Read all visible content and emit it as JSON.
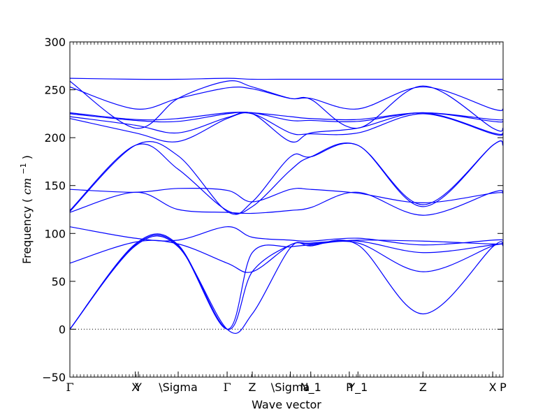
{
  "chart_data": {
    "type": "line",
    "xlabel": "Wave vector",
    "ylabel": "Frequency",
    "ylabel_unit": "cm",
    "ylabel_exponent": "−1",
    "ylim": [
      -50,
      300
    ],
    "yticks": [
      -50,
      0,
      50,
      100,
      150,
      200,
      250,
      300
    ],
    "xlim": [
      0,
      1
    ],
    "x_ticks": [
      {
        "label": "Γ",
        "x": 0.0
      },
      {
        "label": "X",
        "x": 0.151
      },
      {
        "label": "Y",
        "x": 0.158
      },
      {
        "label": "\\Sigma",
        "x": 0.25
      },
      {
        "label": "Γ",
        "x": 0.363
      },
      {
        "label": "Z",
        "x": 0.421
      },
      {
        "label": "\\Sigma",
        "x": 0.509
      },
      {
        "label": "N_1",
        "x": 0.556
      },
      {
        "label": "P",
        "x": 0.645
      },
      {
        "label": "Y_1",
        "x": 0.665
      },
      {
        "label": "Z",
        "x": 0.815
      },
      {
        "label": "X",
        "x": 0.976
      },
      {
        "label": "P",
        "x": 1.0
      }
    ],
    "zero_line": true,
    "line_color": "#0000ff",
    "series": [
      {
        "x": [
          0,
          0.151,
          0.25,
          0.363,
          0.421,
          0.509,
          0.556,
          0.665,
          0.815,
          0.976,
          1
        ],
        "y": [
          0,
          87,
          86,
          0,
          16,
          85,
          87,
          88,
          16,
          86,
          87
        ]
      },
      {
        "x": [
          0,
          0.151,
          0.25,
          0.363,
          0.421,
          0.509,
          0.556,
          0.665,
          0.815,
          0.976,
          1
        ],
        "y": [
          0,
          88,
          87,
          0,
          80,
          86,
          88,
          90,
          60,
          87,
          88
        ]
      },
      {
        "x": [
          0,
          0.151,
          0.25,
          0.363,
          0.421,
          0.509,
          0.556,
          0.665,
          0.815,
          0.976,
          1
        ],
        "y": [
          0,
          89,
          88,
          0,
          60,
          88,
          89,
          92,
          80,
          88,
          89
        ]
      },
      {
        "x": [
          0,
          0.151,
          0.25,
          0.363,
          0.421,
          0.509,
          0.556,
          0.665,
          0.815,
          0.976,
          1
        ],
        "y": [
          69,
          91,
          89,
          69,
          60,
          88,
          90,
          93,
          92,
          89,
          90
        ]
      },
      {
        "x": [
          0,
          0.151,
          0.25,
          0.363,
          0.421,
          0.509,
          0.556,
          0.665,
          0.815,
          0.976,
          1
        ],
        "y": [
          107,
          95,
          93,
          107,
          96,
          93,
          92,
          95,
          88,
          93,
          93
        ]
      },
      {
        "x": [
          0,
          0.151,
          0.25,
          0.363,
          0.421,
          0.509,
          0.556,
          0.665,
          0.815,
          0.976,
          1
        ],
        "y": [
          122,
          143,
          125,
          122,
          121,
          124,
          127,
          143,
          119,
          143,
          143
        ]
      },
      {
        "x": [
          0,
          0.151,
          0.25,
          0.363,
          0.421,
          0.509,
          0.556,
          0.665,
          0.815,
          0.976,
          1
        ],
        "y": [
          124,
          192,
          167,
          124,
          128,
          166,
          180,
          192,
          128,
          192,
          192
        ]
      },
      {
        "x": [
          0,
          0.151,
          0.25,
          0.363,
          0.421,
          0.509,
          0.556,
          0.665,
          0.815,
          0.976,
          1
        ],
        "y": [
          146,
          143,
          147,
          145,
          133,
          146,
          146,
          142,
          132,
          142,
          142
        ]
      },
      {
        "x": [
          0,
          0.151,
          0.25,
          0.363,
          0.421,
          0.509,
          0.556,
          0.665,
          0.815,
          0.976,
          1
        ],
        "y": [
          123,
          192,
          181,
          123,
          133,
          180,
          180,
          192,
          130,
          192,
          192
        ]
      },
      {
        "x": [
          0,
          0.151,
          0.25,
          0.363,
          0.421,
          0.509,
          0.556,
          0.665,
          0.815,
          0.976,
          1
        ],
        "y": [
          220,
          205,
          196,
          220,
          225,
          205,
          204,
          205,
          225,
          204,
          204
        ]
      },
      {
        "x": [
          0,
          0.151,
          0.25,
          0.363,
          0.421,
          0.509,
          0.556,
          0.665,
          0.815,
          0.976,
          1
        ],
        "y": [
          222,
          213,
          205,
          221,
          225,
          196,
          205,
          210,
          226,
          205,
          205
        ]
      },
      {
        "x": [
          0,
          0.151,
          0.25,
          0.363,
          0.421,
          0.509,
          0.556,
          0.665,
          0.815,
          0.976,
          1
        ],
        "y": [
          225,
          218,
          217,
          225,
          226,
          218,
          218,
          217,
          226,
          217,
          217
        ]
      },
      {
        "x": [
          0,
          0.151,
          0.25,
          0.363,
          0.421,
          0.509,
          0.556,
          0.665,
          0.815,
          0.976,
          1
        ],
        "y": [
          226,
          219,
          220,
          226,
          226,
          222,
          220,
          219,
          226,
          219,
          219
        ]
      },
      {
        "x": [
          0,
          0.151,
          0.25,
          0.363,
          0.421,
          0.509,
          0.556,
          0.665,
          0.815,
          0.976,
          1
        ],
        "y": [
          253,
          230,
          241,
          252,
          251,
          241,
          241,
          230,
          253,
          230,
          230
        ]
      },
      {
        "x": [
          0,
          0.151,
          0.25,
          0.363,
          0.421,
          0.509,
          0.556,
          0.665,
          0.815,
          0.976,
          1
        ],
        "y": [
          259,
          210,
          241,
          259,
          253,
          241,
          240,
          210,
          254,
          210,
          210
        ]
      },
      {
        "x": [
          0,
          0.151,
          0.25,
          0.363,
          0.421,
          0.509,
          0.556,
          0.665,
          0.815,
          0.976,
          1
        ],
        "y": [
          262,
          261,
          261,
          262,
          261,
          261,
          261,
          261,
          261,
          261,
          261
        ]
      }
    ]
  }
}
